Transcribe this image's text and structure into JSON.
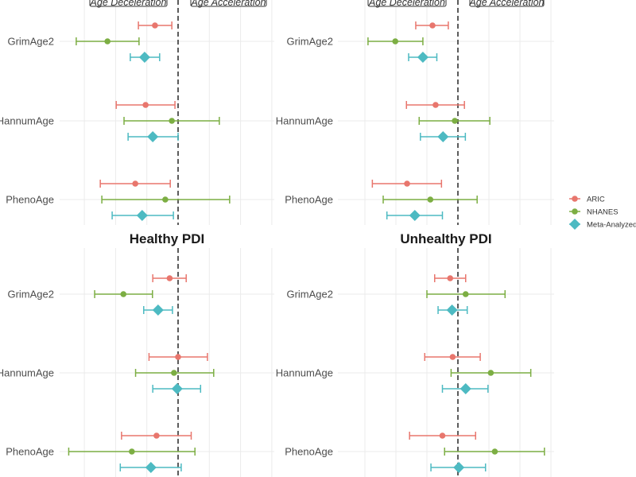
{
  "chart_data": [
    {
      "type": "forest",
      "title": "",
      "xlim": [
        -3.8,
        3.1
      ],
      "grid": true,
      "reference_line": 0,
      "annotations": [
        "Age Deceleration",
        "Age Acceleration"
      ],
      "categories": [
        "GrimAge2",
        "HannumAge",
        "PhenoAge"
      ],
      "series": [
        {
          "name": "ARIC",
          "estimate": [
            -0.74,
            -1.04,
            -1.37
          ],
          "lower": [
            -1.27,
            -1.98,
            -2.49
          ],
          "upper": [
            -0.2,
            -0.1,
            -0.25
          ]
        },
        {
          "name": "NHANES",
          "estimate": [
            -2.26,
            -0.2,
            -0.41
          ],
          "lower": [
            -3.26,
            -1.73,
            -2.44
          ],
          "upper": [
            -1.25,
            1.32,
            1.65
          ]
        },
        {
          "name": "Meta-Analyzed",
          "estimate": [
            -1.07,
            -0.81,
            -1.15
          ],
          "lower": [
            -1.53,
            -1.6,
            -2.11
          ],
          "upper": [
            -0.59,
            0.0,
            -0.15
          ]
        }
      ]
    },
    {
      "type": "forest",
      "title": "",
      "xlim": [
        -3.8,
        3.1
      ],
      "grid": true,
      "reference_line": 0,
      "annotations": [
        "Age Deceleration",
        "Age Acceleration"
      ],
      "categories": [
        "GrimAge2",
        "HannumAge",
        "PhenoAge"
      ],
      "series": [
        {
          "name": "ARIC",
          "estimate": [
            -0.82,
            -0.72,
            -1.64
          ],
          "lower": [
            -1.36,
            -1.66,
            -2.76
          ],
          "upper": [
            -0.31,
            0.21,
            -0.53
          ]
        },
        {
          "name": "NHANES",
          "estimate": [
            -2.02,
            -0.1,
            -0.89
          ],
          "lower": [
            -2.9,
            -1.25,
            -2.41
          ],
          "upper": [
            -1.13,
            1.03,
            0.62
          ]
        },
        {
          "name": "Meta-Analyzed",
          "estimate": [
            -1.13,
            -0.48,
            -1.39
          ],
          "lower": [
            -1.59,
            -1.21,
            -2.29
          ],
          "upper": [
            -0.68,
            0.24,
            -0.5
          ]
        }
      ]
    },
    {
      "type": "forest",
      "title": "Healthy PDI",
      "xlim": [
        -3.8,
        3.1
      ],
      "grid": true,
      "reference_line": 0,
      "categories": [
        "GrimAge2",
        "HannumAge",
        "PhenoAge"
      ],
      "series": [
        {
          "name": "ARIC",
          "estimate": [
            -0.27,
            0.0,
            -0.69
          ],
          "lower": [
            -0.81,
            -0.93,
            -1.81
          ],
          "upper": [
            0.26,
            0.94,
            0.42
          ]
        },
        {
          "name": "NHANES",
          "estimate": [
            -1.75,
            -0.13,
            -1.48
          ],
          "lower": [
            -2.67,
            -1.36,
            -3.5
          ],
          "upper": [
            -0.82,
            1.14,
            0.54
          ]
        },
        {
          "name": "Meta-Analyzed",
          "estimate": [
            -0.64,
            -0.03,
            -0.87
          ],
          "lower": [
            -1.1,
            -0.81,
            -1.85
          ],
          "upper": [
            -0.18,
            0.72,
            0.1
          ]
        }
      ]
    },
    {
      "type": "forest",
      "title": "Unhealthy PDI",
      "xlim": [
        -3.8,
        3.1
      ],
      "grid": true,
      "reference_line": 0,
      "categories": [
        "GrimAge2",
        "HannumAge",
        "PhenoAge"
      ],
      "series": [
        {
          "name": "ARIC",
          "estimate": [
            -0.25,
            -0.17,
            -0.5
          ],
          "lower": [
            -0.75,
            -1.07,
            -1.56
          ],
          "upper": [
            0.25,
            0.72,
            0.57
          ]
        },
        {
          "name": "NHANES",
          "estimate": [
            0.25,
            1.06,
            1.19
          ],
          "lower": [
            -1.0,
            -0.22,
            -0.43
          ],
          "upper": [
            1.52,
            2.35,
            2.79
          ]
        },
        {
          "name": "Meta-Analyzed",
          "estimate": [
            -0.19,
            0.25,
            0.03
          ],
          "lower": [
            -0.64,
            -0.5,
            -0.87
          ],
          "upper": [
            0.3,
            0.97,
            0.89
          ]
        }
      ]
    }
  ],
  "legend": {
    "position": "right",
    "items": [
      {
        "label": "ARIC",
        "shape": "circle",
        "color": "#E8766D"
      },
      {
        "label": "NHANES",
        "shape": "circle",
        "color": "#7CAE43"
      },
      {
        "label": "Meta-Analyzed",
        "shape": "diamond",
        "color": "#4DBAC2"
      }
    ]
  }
}
